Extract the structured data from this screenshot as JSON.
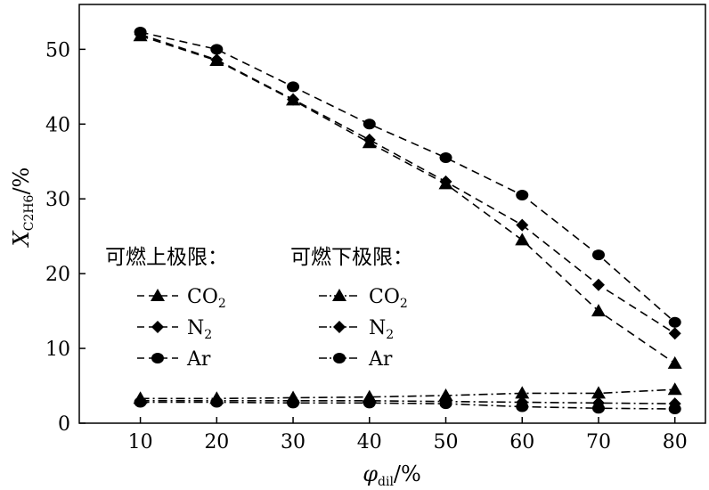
{
  "chart_data": {
    "type": "line",
    "xlabel": {
      "main": "φ",
      "sub": "dil",
      "suffix": "/%"
    },
    "ylabel": {
      "main": "X",
      "sub": "C2H6",
      "suffix": "/%"
    },
    "x": [
      10,
      20,
      30,
      40,
      50,
      60,
      70,
      80
    ],
    "xticks": [
      "10",
      "20",
      "30",
      "40",
      "50",
      "60",
      "70",
      "80"
    ],
    "yticks": [
      "0",
      "10",
      "20",
      "30",
      "40",
      "50"
    ],
    "xlim": [
      2,
      84
    ],
    "ylim": [
      0,
      56
    ],
    "grid": false,
    "legend_placement": "center-left",
    "legend_headings": {
      "upper": "可燃上极限：",
      "lower": "可燃下极限："
    },
    "series": [
      {
        "name": "CO2",
        "label_main": "CO",
        "label_sub": "2",
        "group": "upper",
        "marker": "triangle",
        "dash": "dashed",
        "values": [
          51.8,
          48.5,
          43.2,
          37.5,
          32.0,
          24.5,
          15.0,
          8.0
        ]
      },
      {
        "name": "N2",
        "label_main": "N",
        "label_sub": "2",
        "group": "upper",
        "marker": "diamond",
        "dash": "dashed",
        "values": [
          52.0,
          48.6,
          43.3,
          37.9,
          32.3,
          26.5,
          18.5,
          12.0
        ]
      },
      {
        "name": "Ar",
        "label_main": "Ar",
        "label_sub": "",
        "group": "upper",
        "marker": "circle",
        "dash": "dashed",
        "values": [
          52.3,
          50.0,
          45.0,
          40.0,
          35.5,
          30.5,
          22.5,
          13.5
        ]
      },
      {
        "name": "CO2",
        "label_main": "CO",
        "label_sub": "2",
        "group": "lower",
        "marker": "triangle",
        "dash": "dashdot",
        "values": [
          3.3,
          3.3,
          3.4,
          3.5,
          3.7,
          4.0,
          4.0,
          4.5
        ]
      },
      {
        "name": "N2",
        "label_main": "N",
        "label_sub": "2",
        "group": "lower",
        "marker": "diamond",
        "dash": "dashdot",
        "values": [
          3.0,
          3.0,
          3.0,
          3.0,
          2.9,
          2.8,
          2.7,
          2.6
        ]
      },
      {
        "name": "Ar",
        "label_main": "Ar",
        "label_sub": "",
        "group": "lower",
        "marker": "circle",
        "dash": "dashdot",
        "values": [
          2.8,
          2.8,
          2.7,
          2.7,
          2.6,
          2.2,
          2.0,
          1.9
        ]
      }
    ]
  },
  "colors": {
    "line": "#000000",
    "background": "#ffffff"
  }
}
